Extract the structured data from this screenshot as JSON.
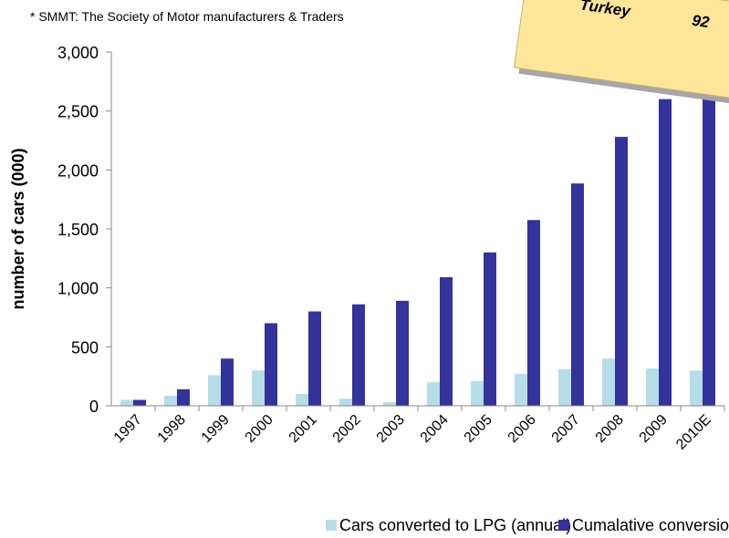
{
  "chart_data": {
    "type": "bar",
    "subtitle": "* SMMT: The Society of Motor manufacturers & Traders",
    "y_label": "number of cars (000)",
    "categories": [
      "1997",
      "1998",
      "1999",
      "2000",
      "2001",
      "2002",
      "2003",
      "2004",
      "2005",
      "2006",
      "2007",
      "2008",
      "2009",
      "2010E"
    ],
    "series": [
      {
        "name": "Cars converted to LPG (annual)",
        "color": "#b7dde8",
        "values": [
          50,
          85,
          260,
          300,
          100,
          60,
          30,
          200,
          210,
          270,
          310,
          400,
          315,
          300
        ]
      },
      {
        "name": "Cumalative conversions",
        "color": "#333399",
        "values": [
          50,
          140,
          400,
          700,
          800,
          860,
          890,
          1090,
          1300,
          1575,
          1885,
          2280,
          2600,
          2900
        ]
      }
    ],
    "ylim": [
      0,
      3000
    ],
    "yticks": [
      0,
      500,
      {
        "value": 1000,
        "label": "1,000"
      },
      {
        "value": 1500,
        "label": "1,500"
      },
      {
        "value": 2000,
        "label": "2,000"
      },
      {
        "value": 2500,
        "label": "2,500"
      },
      {
        "value": 3000,
        "label": "3,000"
      }
    ],
    "legend": "bottom",
    "note": {
      "label": "Turkey",
      "value": 92
    }
  }
}
